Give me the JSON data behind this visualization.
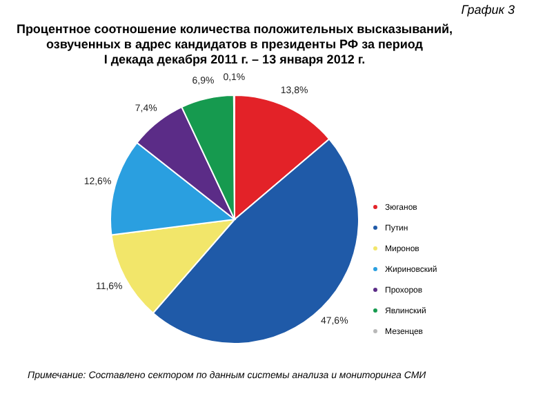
{
  "chart_data": {
    "type": "pie",
    "title": "Процентное соотношение количества положительных высказываний, озвученных в адрес кандидатов в президенты РФ за период I декада декабря 2011 г. – 13 января 2012 г.",
    "annotations": [
      "График 3",
      "Примечание: Составлено сектором по данным системы анализа и мониторинга СМИ"
    ],
    "categories": [
      "Зюганов",
      "Путин",
      "Миронов",
      "Жириновский",
      "Прохоров",
      "Явлинский",
      "Мезенцев"
    ],
    "values": [
      13.8,
      47.6,
      11.6,
      12.6,
      7.4,
      6.9,
      0.1
    ],
    "value_labels": [
      "13,8%",
      "47,6%",
      "11,6%",
      "12,6%",
      "7,4%",
      "6,9%",
      "0,1%"
    ],
    "colors": [
      "#e32228",
      "#1f5aa8",
      "#f2e66a",
      "#2a9fe0",
      "#5b2c87",
      "#169a4f",
      "#b8b8b8"
    ],
    "legend": "bottom right"
  }
}
